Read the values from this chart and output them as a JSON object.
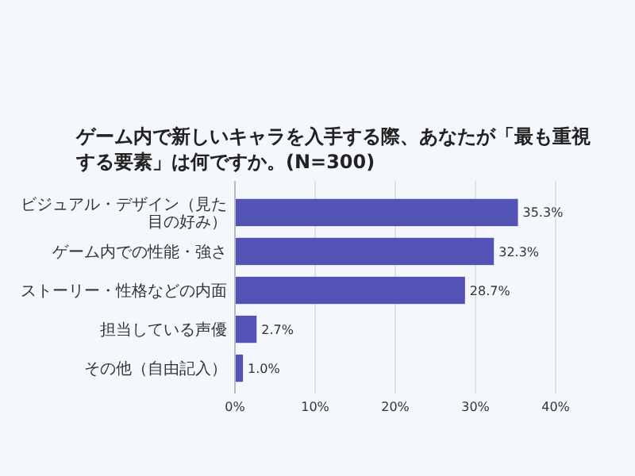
{
  "chart_data": {
    "type": "bar",
    "orientation": "horizontal",
    "title": "ゲーム内で新しいキャラを入手する際、あなたが「最も重視する要素」は何ですか。(N=300)",
    "categories": [
      "ビジュアル・デザイン（見た目の好み）",
      "ゲーム内での性能・強さ",
      "ストーリー・性格などの内面",
      "担当している声優",
      "その他（自由記入）"
    ],
    "values": [
      35.3,
      32.3,
      28.7,
      2.7,
      1.0
    ],
    "color": "#5253b5",
    "value_labels": [
      "35.3%",
      "32.3%",
      "28.7%",
      "2.7%",
      "1.0%"
    ],
    "xlim": [
      0,
      40
    ],
    "xticks": [
      {
        "value": 0,
        "label": "0%"
      },
      {
        "value": 10,
        "label": "10%"
      },
      {
        "value": 20,
        "label": "20%"
      },
      {
        "value": 30,
        "label": "30%"
      },
      {
        "value": 40,
        "label": "40%"
      }
    ],
    "grid": "x"
  }
}
